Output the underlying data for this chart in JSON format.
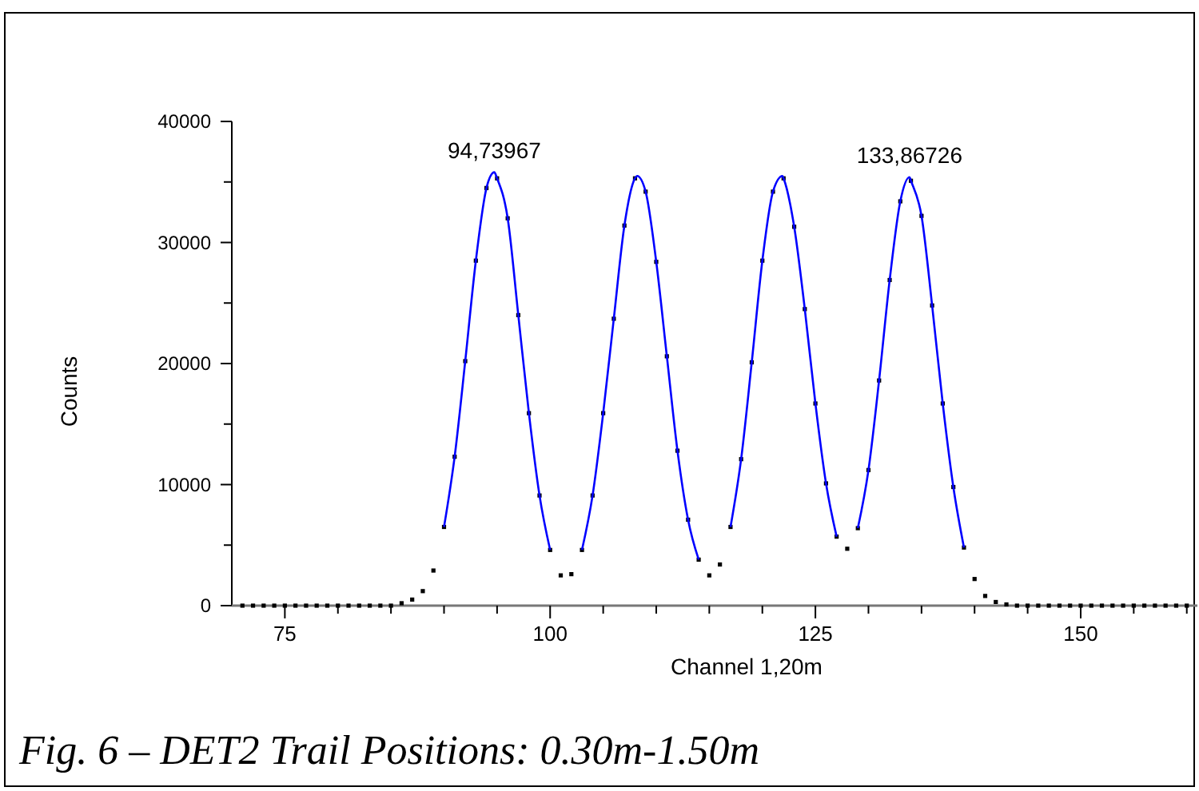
{
  "chart_data": {
    "type": "scatter",
    "xlabel": "Channel 1,20m",
    "ylabel": "Counts",
    "annotations": [
      {
        "text": "94,73967",
        "x": 94.74,
        "y": 35800
      },
      {
        "text": "133,86726",
        "x": 133.87,
        "y": 35400
      },
      "Fig. 6 – DET2 Trail Positions: 0.30m-1.50m"
    ],
    "xlim": [
      70,
      161
    ],
    "ylim": [
      0,
      40000
    ],
    "xticks": [
      75,
      {
        "value": 80,
        "label": null
      },
      {
        "value": 85,
        "label": null
      },
      {
        "value": 90,
        "label": null
      },
      {
        "value": 95,
        "label": null
      },
      100,
      {
        "value": 105,
        "label": null
      },
      {
        "value": 110,
        "label": null
      },
      {
        "value": 115,
        "label": null
      },
      {
        "value": 120,
        "label": null
      },
      125,
      {
        "value": 130,
        "label": null
      },
      {
        "value": 135,
        "label": null
      },
      {
        "value": 140,
        "label": null
      },
      {
        "value": 145,
        "label": null
      },
      150,
      {
        "value": 155,
        "label": null
      },
      {
        "value": 160,
        "label": null
      }
    ],
    "yticks": [
      0,
      {
        "value": 5000,
        "label": null
      },
      10000,
      {
        "value": 15000,
        "label": null
      },
      20000,
      {
        "value": 25000,
        "label": null
      },
      30000,
      {
        "value": 35000,
        "label": null
      },
      40000
    ],
    "grid": false,
    "series": [
      {
        "color": "#000000",
        "marker": "square",
        "x": [
          71,
          72,
          73,
          74,
          75,
          76,
          77,
          78,
          79,
          80,
          81,
          82,
          83,
          84,
          85,
          86,
          87,
          88,
          89,
          90,
          91,
          92,
          93,
          94,
          95,
          96,
          97,
          98,
          99,
          100,
          101,
          102,
          103,
          104,
          105,
          106,
          107,
          108,
          109,
          110,
          111,
          112,
          113,
          114,
          115,
          116,
          117,
          118,
          119,
          120,
          121,
          122,
          123,
          124,
          125,
          126,
          127,
          128,
          129,
          130,
          131,
          132,
          133,
          134,
          135,
          136,
          137,
          138,
          139,
          140,
          141,
          142,
          143,
          144,
          145,
          146,
          147,
          148,
          149,
          150,
          151,
          152,
          153,
          154,
          155,
          156,
          157,
          158,
          159,
          160
        ],
        "values": [
          0,
          0,
          0,
          0,
          0,
          0,
          0,
          0,
          0,
          0,
          0,
          0,
          0,
          0,
          0,
          200,
          500,
          1200,
          2900,
          6500,
          12300,
          20200,
          28500,
          34500,
          35300,
          32000,
          24000,
          15900,
          9100,
          4600,
          2500,
          2600,
          4600,
          9100,
          15900,
          23700,
          31400,
          35300,
          34200,
          28400,
          20600,
          12800,
          7100,
          3800,
          2500,
          3400,
          6500,
          12100,
          20100,
          28500,
          34200,
          35300,
          31300,
          24500,
          16700,
          10100,
          5700,
          4700,
          6400,
          11200,
          18600,
          26900,
          33400,
          35100,
          32200,
          24800,
          16700,
          9800,
          4800,
          2200,
          800,
          300,
          100,
          0,
          0,
          0,
          0,
          0,
          0,
          0,
          0,
          0,
          0,
          0,
          0,
          0,
          0,
          0,
          0,
          0
        ]
      },
      {
        "type": "line",
        "color": "#0000ff",
        "line_style": "solid",
        "x": [
          90,
          91,
          92,
          93,
          94,
          94.74,
          95,
          96,
          97,
          98,
          99,
          100
        ],
        "values": [
          6500,
          12300,
          20200,
          28500,
          34500,
          35800,
          35300,
          32000,
          24000,
          15900,
          9100,
          4600
        ]
      },
      {
        "type": "line",
        "color": "#0000ff",
        "line_style": "solid",
        "x": [
          103,
          104,
          105,
          106,
          107,
          108,
          108.2,
          109,
          110,
          111,
          112,
          113,
          114
        ],
        "values": [
          4600,
          9100,
          15900,
          23700,
          31400,
          35300,
          35500,
          34200,
          28400,
          20600,
          12800,
          7100,
          3800
        ]
      },
      {
        "type": "line",
        "color": "#0000ff",
        "line_style": "solid",
        "x": [
          117,
          118,
          119,
          120,
          121,
          121.9,
          122,
          123,
          124,
          125,
          126,
          127
        ],
        "values": [
          6500,
          12100,
          20100,
          28500,
          34200,
          35500,
          35300,
          31300,
          24500,
          16700,
          10100,
          5700
        ]
      },
      {
        "type": "line",
        "color": "#0000ff",
        "line_style": "solid",
        "x": [
          129,
          130,
          131,
          132,
          133,
          133.87,
          134,
          135,
          136,
          137,
          138,
          139
        ],
        "values": [
          6400,
          11200,
          18600,
          26900,
          33400,
          35400,
          35100,
          32200,
          24800,
          16700,
          9800,
          4800
        ]
      }
    ]
  }
}
